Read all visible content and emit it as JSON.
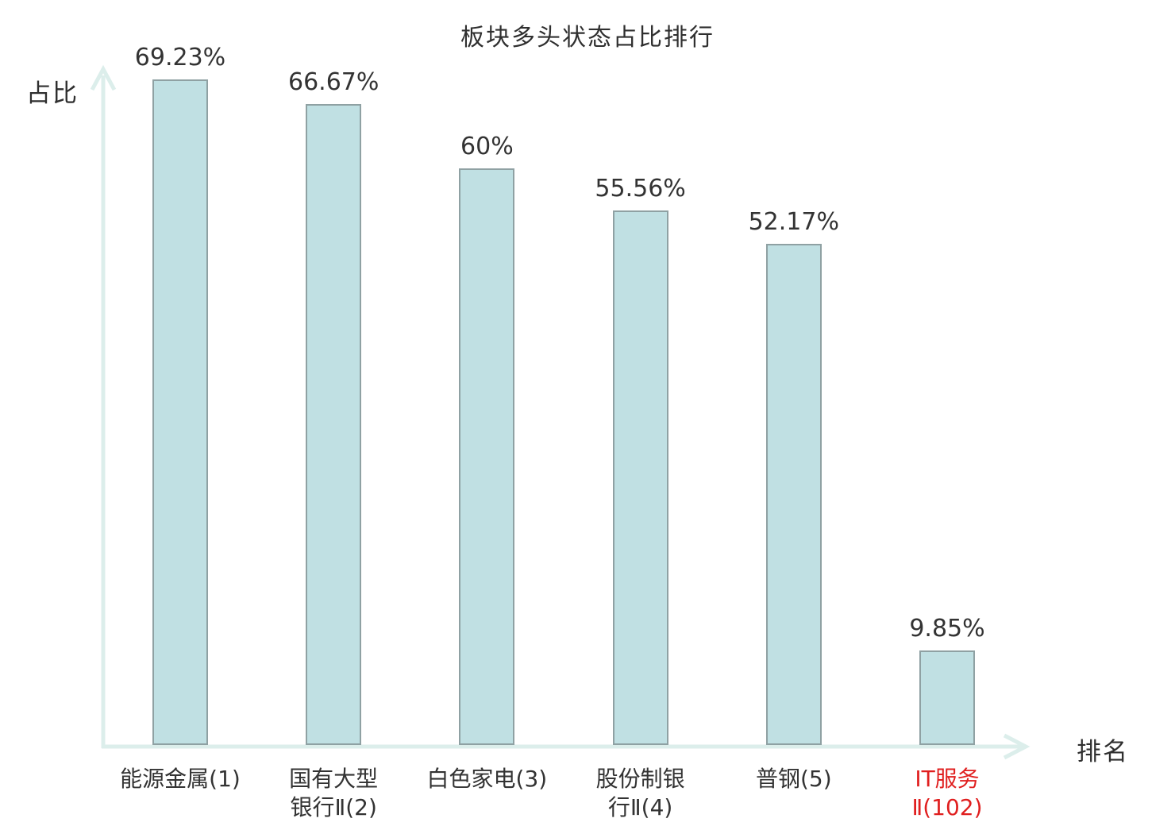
{
  "chart_data": {
    "type": "bar",
    "title": "板块多头状态占比排行",
    "ylabel": "占比",
    "xlabel": "排名",
    "categories": [
      "能源金属(1)",
      "国有大型银行Ⅱ(2)",
      "白色家电(3)",
      "股份制银行Ⅱ(4)",
      "普钢(5)",
      "IT服务Ⅱ(102)"
    ],
    "category_lines": [
      [
        "能源金属(1)"
      ],
      [
        "国有大型",
        "银行Ⅱ(2)"
      ],
      [
        "白色家电(3)"
      ],
      [
        "股份制银",
        "行Ⅱ(4)"
      ],
      [
        "普钢(5)"
      ],
      [
        "IT服务",
        "Ⅱ(102)"
      ]
    ],
    "values": [
      69.23,
      66.67,
      60,
      55.56,
      52.17,
      9.85
    ],
    "value_labels": [
      "69.23%",
      "66.67%",
      "60%",
      "55.56%",
      "52.17%",
      "9.85%"
    ],
    "highlight_index": 5,
    "ylim": [
      0,
      69.23
    ],
    "grid": false,
    "legend": "none",
    "colors": {
      "bar_fill": "#c0e0e3",
      "bar_border": "#8fa1a3",
      "axis": "#dceeeb",
      "text": "#333333",
      "highlight_text": "#e01f1f"
    }
  }
}
